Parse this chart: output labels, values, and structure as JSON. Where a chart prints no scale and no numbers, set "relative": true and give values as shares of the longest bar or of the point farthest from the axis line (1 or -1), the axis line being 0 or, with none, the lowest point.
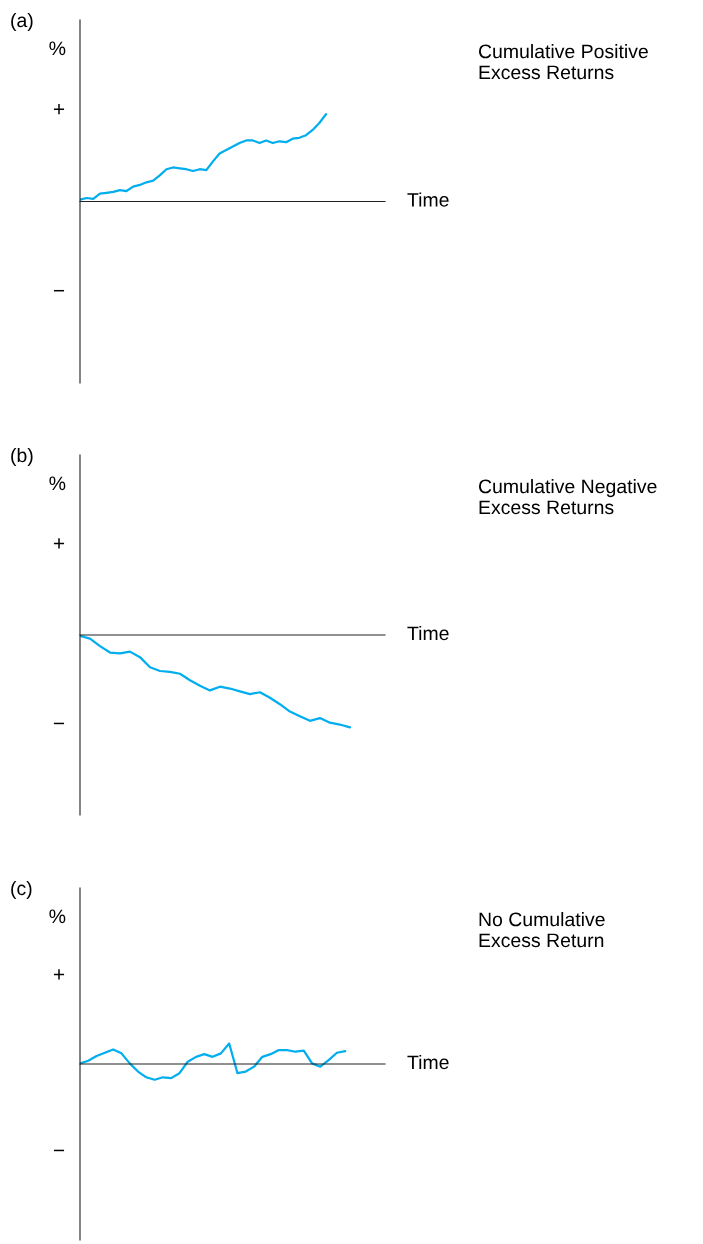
{
  "chart_data": [
    {
      "type": "line",
      "relative": true,
      "title": "(a)",
      "xlabel": "Time",
      "ylabel": "%",
      "annotations": [
        "Cumulative Positive\nExcess Returns",
        "+",
        "−"
      ],
      "color": "#00aeef",
      "categories": [
        null,
        null,
        null,
        null,
        null,
        null,
        null,
        null,
        null,
        null,
        null,
        null,
        null,
        null,
        null,
        null,
        null,
        null,
        null,
        null,
        null,
        null,
        null,
        null,
        null,
        null,
        null,
        null,
        null,
        null,
        null,
        null,
        null,
        null,
        null,
        null,
        null,
        null
      ],
      "values": [
        0.02,
        0.04,
        0.03,
        0.09,
        0.1,
        0.11,
        0.13,
        0.12,
        0.17,
        0.19,
        0.22,
        0.24,
        0.3,
        0.37,
        0.39,
        0.38,
        0.37,
        0.35,
        0.37,
        0.36,
        0.46,
        0.55,
        0.59,
        0.63,
        0.67,
        0.7,
        0.7,
        0.67,
        0.7,
        0.67,
        0.69,
        0.68,
        0.72,
        0.73,
        0.76,
        0.82,
        0.9,
        1
      ]
    },
    {
      "type": "line",
      "relative": true,
      "title": "(b)",
      "xlabel": "Time",
      "ylabel": "%",
      "annotations": [
        "Cumulative Negative\nExcess Returns",
        "+",
        "−"
      ],
      "color": "#00aeef",
      "categories": [
        null,
        null,
        null,
        null,
        null,
        null,
        null,
        null,
        null,
        null,
        null,
        null,
        null,
        null,
        null,
        null,
        null,
        null,
        null,
        null,
        null,
        null,
        null,
        null,
        null,
        null,
        null,
        null
      ],
      "values": [
        -0.01,
        -0.04,
        -0.12,
        -0.19,
        -0.2,
        -0.18,
        -0.24,
        -0.35,
        -0.39,
        -0.4,
        -0.42,
        -0.49,
        -0.55,
        -0.6,
        -0.56,
        -0.58,
        -0.61,
        -0.64,
        -0.62,
        -0.68,
        -0.75,
        -0.83,
        -0.88,
        -0.93,
        -0.9,
        -0.95,
        -0.97,
        -1
      ]
    },
    {
      "type": "line",
      "relative": true,
      "title": "(c)",
      "xlabel": "Time",
      "ylabel": "%",
      "annotations": [
        "No Cumulative\nExcess Return",
        "+",
        "−"
      ],
      "color": "#00aeef",
      "categories": [
        null,
        null,
        null,
        null,
        null,
        null,
        null,
        null,
        null,
        null,
        null,
        null,
        null,
        null,
        null,
        null,
        null,
        null,
        null,
        null,
        null,
        null,
        null,
        null,
        null,
        null,
        null,
        null,
        null,
        null,
        null,
        null,
        null
      ],
      "values": [
        0.03,
        0.16,
        0.39,
        0.55,
        0.71,
        0.52,
        0.03,
        -0.37,
        -0.65,
        -0.77,
        -0.65,
        -0.69,
        -0.45,
        0.11,
        0.35,
        0.48,
        0.35,
        0.52,
        1,
        -0.45,
        -0.37,
        -0.13,
        0.35,
        0.48,
        0.68,
        0.68,
        0.6,
        0.65,
        0.03,
        -0.13,
        0.19,
        0.55,
        0.63
      ]
    }
  ]
}
